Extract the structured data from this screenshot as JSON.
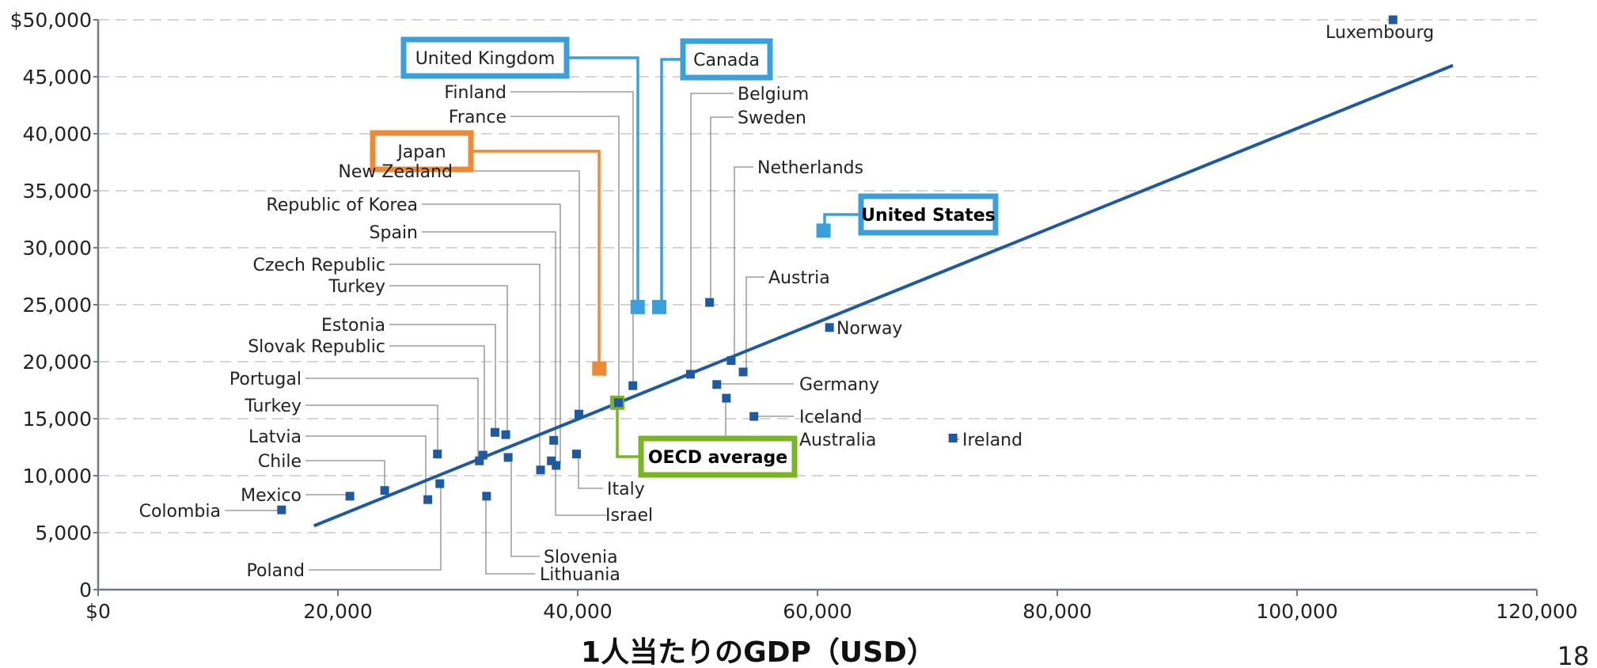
{
  "chart_data": {
    "type": "scatter",
    "xlabel": "1人当たりのGDP（USD）",
    "ylabel": "",
    "xlim": [
      0,
      120000
    ],
    "ylim": [
      0,
      50000
    ],
    "grid": true,
    "x_ticks": [
      "$0",
      "20,000",
      "40,000",
      "60,000",
      "80,000",
      "100,000",
      "120,000"
    ],
    "y_ticks": [
      "0",
      "5,000",
      "10,000",
      "15,000",
      "20,000",
      "25,000",
      "30,000",
      "35,000",
      "40,000",
      "45,000",
      "$50,000"
    ],
    "trendline": {
      "x": [
        18000,
        113000
      ],
      "y": [
        5600,
        46000
      ],
      "color": "#1f5aa0"
    },
    "series_color": "#1f5aa0",
    "points": [
      {
        "name": "Luxembourg",
        "x": 108000,
        "y": 50000
      },
      {
        "name": "United States",
        "x": 60500,
        "y": 31500,
        "highlight": "#3aa0dc"
      },
      {
        "name": "United Kingdom",
        "x": 45000,
        "y": 24800,
        "highlight": "#3aa0dc"
      },
      {
        "name": "Canada",
        "x": 46800,
        "y": 24800,
        "highlight": "#3aa0dc"
      },
      {
        "name": "Japan",
        "x": 41800,
        "y": 19400,
        "highlight": "#ec8a35"
      },
      {
        "name": "OECD average",
        "x": 43300,
        "y": 16400,
        "highlight": "#7ab526"
      },
      {
        "name": "Finland",
        "x": 44600,
        "y": 17900
      },
      {
        "name": "France",
        "x": 43400,
        "y": 16400
      },
      {
        "name": "Belgium",
        "x": 49400,
        "y": 18900
      },
      {
        "name": "Sweden",
        "x": 51000,
        "y": 25200
      },
      {
        "name": "Netherlands",
        "x": 52800,
        "y": 20100
      },
      {
        "name": "Austria",
        "x": 53800,
        "y": 19100
      },
      {
        "name": "Norway",
        "x": 61000,
        "y": 23000
      },
      {
        "name": "Germany",
        "x": 51600,
        "y": 18000
      },
      {
        "name": "Iceland",
        "x": 54700,
        "y": 15200
      },
      {
        "name": "Australia",
        "x": 52400,
        "y": 16800
      },
      {
        "name": "Ireland",
        "x": 71300,
        "y": 13300
      },
      {
        "name": "New Zealand",
        "x": 40100,
        "y": 15400
      },
      {
        "name": "Republic of Korea",
        "x": 38200,
        "y": 10900
      },
      {
        "name": "Spain",
        "x": 37800,
        "y": 11300
      },
      {
        "name": "Czech Republic",
        "x": 36900,
        "y": 10500
      },
      {
        "name": "Turkey",
        "x": 34200,
        "y": 11600
      },
      {
        "name": "Estonia",
        "x": 33100,
        "y": 13800
      },
      {
        "name": "Slovak Republic",
        "x": 32100,
        "y": 11800
      },
      {
        "name": "Portugal",
        "x": 31800,
        "y": 11300
      },
      {
        "name": "Turkey",
        "x": 28300,
        "y": 11900
      },
      {
        "name": "Latvia",
        "x": 27500,
        "y": 7900
      },
      {
        "name": "Chile",
        "x": 23900,
        "y": 8700
      },
      {
        "name": "Mexico",
        "x": 21000,
        "y": 8200
      },
      {
        "name": "Colombia",
        "x": 15300,
        "y": 7000
      },
      {
        "name": "Poland",
        "x": 28500,
        "y": 9300
      },
      {
        "name": "Lithuania",
        "x": 32400,
        "y": 8200
      },
      {
        "name": "Slovenia",
        "x": 34000,
        "y": 13600
      },
      {
        "name": "Israel",
        "x": 38000,
        "y": 13100
      },
      {
        "name": "Italy",
        "x": 39900,
        "y": 11900
      }
    ]
  },
  "page_number": "18"
}
